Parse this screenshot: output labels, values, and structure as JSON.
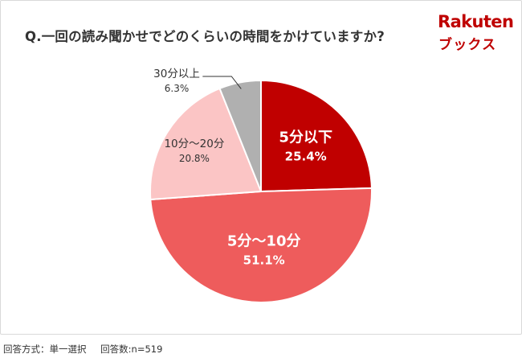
{
  "title": "Q.一回の読み聞かせでどのくらいの時間をかけていますか?",
  "logo": {
    "top": "Rakuten",
    "bottom": "ブックス"
  },
  "footer": {
    "method": "回答方式：単一選択",
    "count": "回答数:n=519"
  },
  "colors": {
    "accent": "#bf0000"
  },
  "chart_data": {
    "type": "pie",
    "title": "Q.一回の読み聞かせでどのくらいの時間をかけていますか?",
    "slices": [
      {
        "label": "5分以下",
        "value": 25.4,
        "value_label": "25.4%",
        "color": "#c00000"
      },
      {
        "label": "5分～10分",
        "value": 51.1,
        "value_label": "51.1%",
        "color": "#ee5c5c"
      },
      {
        "label": "10分～20分",
        "value": 20.8,
        "value_label": "20.8%",
        "color": "#fbc5c5"
      },
      {
        "label": "30分以上",
        "value": 6.3,
        "value_label": "6.3%",
        "color": "#b0b0b0"
      }
    ],
    "start_direction": "12 o'clock",
    "direction": "clockwise",
    "legend": "none"
  }
}
